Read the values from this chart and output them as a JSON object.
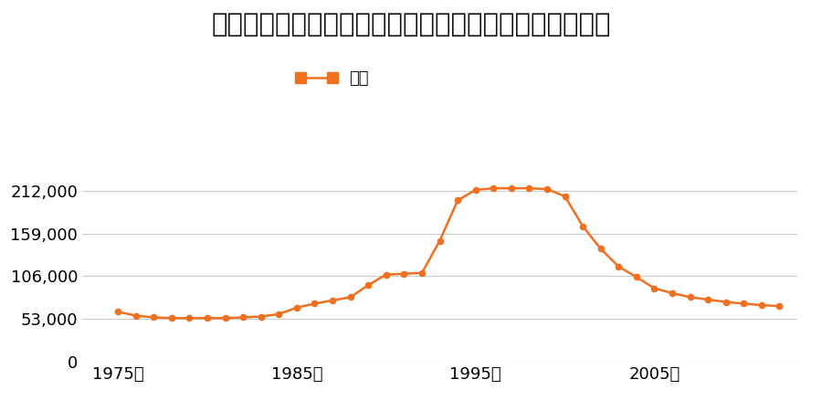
{
  "title": "長野県長野市大字稲葉字上千田沖２９４番３の地価推移",
  "legend_label": "価格",
  "line_color": "#f07020",
  "marker_color": "#f07020",
  "background_color": "#ffffff",
  "ylim": [
    0,
    265000
  ],
  "yticks": [
    0,
    53000,
    106000,
    159000,
    212000
  ],
  "ytick_labels": [
    "0",
    "53,000",
    "106,000",
    "159,000",
    "212,000"
  ],
  "xtick_years": [
    1975,
    1985,
    1995,
    2005
  ],
  "xtick_labels": [
    "1975年",
    "1985年",
    "1995年",
    "2005年"
  ],
  "years": [
    1975,
    1976,
    1977,
    1978,
    1979,
    1980,
    1981,
    1982,
    1983,
    1984,
    1985,
    1986,
    1987,
    1988,
    1989,
    1990,
    1991,
    1992,
    1993,
    1994,
    1995,
    1996,
    1997,
    1998,
    1999,
    2000,
    2001,
    2002,
    2003,
    2004,
    2005,
    2006,
    2007,
    2008,
    2009,
    2010,
    2011,
    2012
  ],
  "values": [
    62000,
    57000,
    55000,
    54000,
    54000,
    54000,
    54000,
    55000,
    56000,
    59000,
    67000,
    72000,
    76000,
    80000,
    95000,
    108000,
    109000,
    110000,
    150000,
    200000,
    213000,
    215000,
    215000,
    215000,
    214000,
    205000,
    168000,
    140000,
    118000,
    105000,
    91000,
    85000,
    80000,
    77000,
    74000,
    72000,
    70000,
    69000
  ],
  "grid_color": "#cccccc",
  "title_fontsize": 21,
  "tick_fontsize": 13,
  "legend_fontsize": 13
}
